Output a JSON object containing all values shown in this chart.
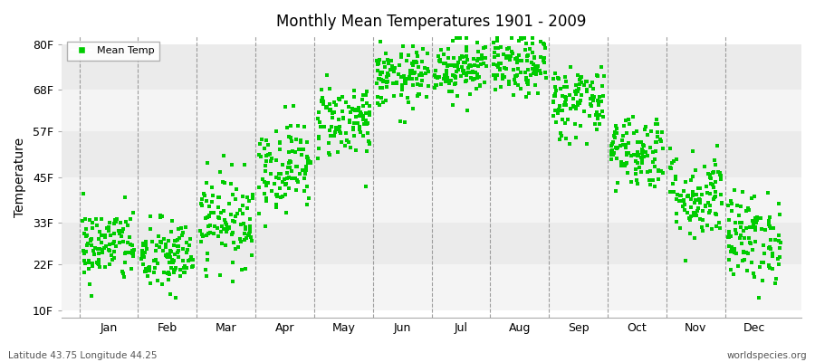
{
  "title": "Monthly Mean Temperatures 1901 - 2009",
  "ylabel": "Temperature",
  "subtitle_left": "Latitude 43.75 Longitude 44.25",
  "subtitle_right": "worldspecies.org",
  "yticks": [
    10,
    22,
    33,
    45,
    57,
    68,
    80
  ],
  "ytick_labels": [
    "10F",
    "22F",
    "33F",
    "45F",
    "57F",
    "68F",
    "80F"
  ],
  "ylim": [
    8,
    82
  ],
  "months": [
    "Jan",
    "Feb",
    "Mar",
    "Apr",
    "May",
    "Jun",
    "Jul",
    "Aug",
    "Sep",
    "Oct",
    "Nov",
    "Dec"
  ],
  "dot_color": "#00cc00",
  "background_color": "#ffffff",
  "plot_bg_bands": [
    "#f0f0f0",
    "#e8e8e8"
  ],
  "legend_label": "Mean Temp",
  "n_years": 109,
  "monthly_means": [
    27,
    24,
    34,
    48,
    60,
    71,
    74,
    74,
    65,
    52,
    40,
    29
  ],
  "monthly_stds": [
    5,
    5,
    6,
    6,
    5,
    4,
    4,
    4,
    5,
    5,
    6,
    6
  ],
  "seed": 42,
  "xlim": [
    -0.3,
    12.3
  ],
  "band_colors": [
    "#f0f0f0",
    "#e8e8e8"
  ]
}
